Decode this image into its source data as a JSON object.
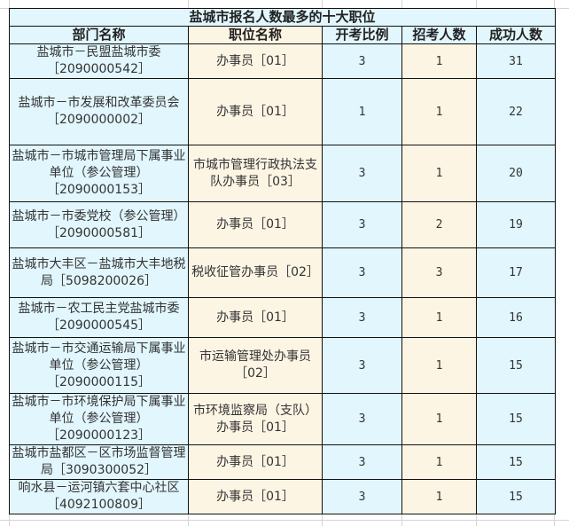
{
  "title": "盐城市报名人数最多的十大职位",
  "headers": [
    "部门名称",
    "职位名称",
    "开考比例",
    "招考人数",
    "成功人数"
  ],
  "rows": [
    {
      "dept": "盐城市－民盟盐城市委［2090000542］",
      "position": "办事员［01］",
      "ratio": "3",
      "quota": "1",
      "success": "31"
    },
    {
      "dept": "盐城市－市发展和改革委员会［2090000002］",
      "position": "办事员［01］",
      "ratio": "1",
      "quota": "1",
      "success": "22"
    },
    {
      "dept": "盐城市－市城市管理局下属事业单位（参公管理）［2090000153］",
      "position": "市城市管理行政执法支队办事员［03］",
      "ratio": "3",
      "quota": "1",
      "success": "20"
    },
    {
      "dept": "盐城市－市委党校（参公管理）［2090000581］",
      "position": "办事员［01］",
      "ratio": "3",
      "quota": "2",
      "success": "19"
    },
    {
      "dept": "盐城市大丰区－盐城市大丰地税局［5098200026］",
      "position": "税收征管办事员［02］",
      "ratio": "3",
      "quota": "3",
      "success": "17"
    },
    {
      "dept": "盐城市－农工民主党盐城市委［2090000545］",
      "position": "办事员［01］",
      "ratio": "3",
      "quota": "1",
      "success": "16"
    },
    {
      "dept": "盐城市－市交通运输局下属事业单位（参公管理）［2090000115］",
      "position": "市运输管理处办事员［02］",
      "ratio": "3",
      "quota": "1",
      "success": "15"
    },
    {
      "dept": "盐城市－市环境保护局下属事业单位（参公管理）［2090000123］",
      "position": "市环境监察局（支队）办事员［01］",
      "ratio": "3",
      "quota": "1",
      "success": "15"
    },
    {
      "dept": "盐城市盐都区－区市场监督管理局［3090300052］",
      "position": "办事员［01］",
      "ratio": "3",
      "quota": "1",
      "success": "15"
    },
    {
      "dept": "响水县－运河镇六套中心社区［4092100809］",
      "position": "办事员［01］",
      "ratio": "3",
      "quota": "1",
      "success": "15"
    }
  ],
  "colors": {
    "blue_fill": "#e1f6fd",
    "beige_fill": "#fdf5e4",
    "border": "#111111",
    "gridline": "#d4d4d4"
  }
}
